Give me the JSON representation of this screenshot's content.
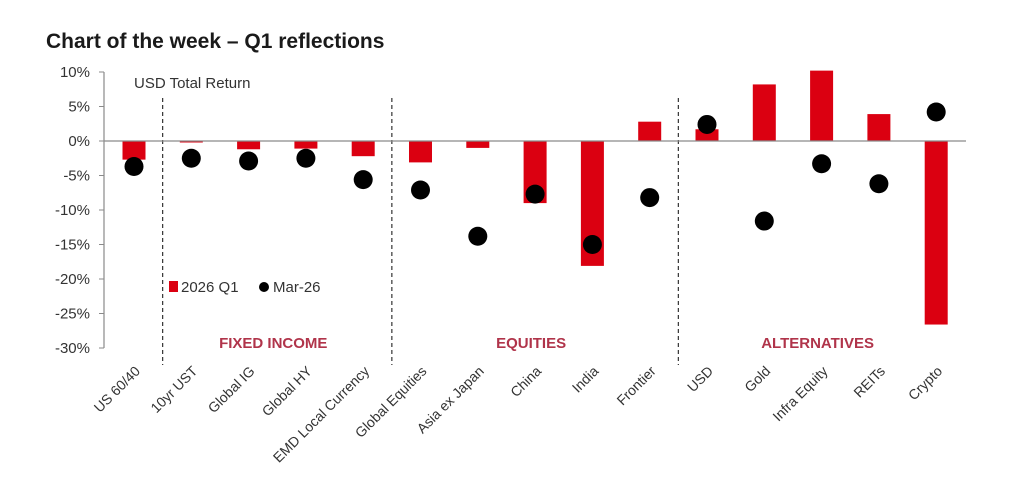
{
  "title": "Chart of the week – Q1 reflections",
  "annotation": "USD Total Return",
  "sections": [
    "FIXED INCOME",
    "EQUITIES",
    "ALTERNATIVES"
  ],
  "colors": {
    "bar": "#db0011",
    "dot": "#000000",
    "section": "#b0344a",
    "axis": "#8a8a8a"
  },
  "chart_data": {
    "type": "bar",
    "categories": [
      "US 60/40",
      "10yr UST",
      "Global IG",
      "Global HY",
      "EMD Local Currency",
      "Global Equities",
      "Asia ex Japan",
      "China",
      "India",
      "Frontier",
      "USD",
      "Gold",
      "Infra Equity",
      "REITs",
      "Crypto"
    ],
    "series": [
      {
        "name": "2026 Q1",
        "kind": "bar",
        "values": [
          -2.7,
          -0.2,
          -1.2,
          -1.1,
          -2.2,
          -3.1,
          -1.0,
          -9.0,
          -18.1,
          2.8,
          1.7,
          8.2,
          10.2,
          3.9,
          -26.6
        ]
      },
      {
        "name": "Mar-26",
        "kind": "scatter",
        "values": [
          -3.7,
          -2.5,
          -2.9,
          -2.5,
          -5.6,
          -7.1,
          -13.8,
          -7.7,
          -15.0,
          -8.2,
          2.4,
          -11.6,
          -3.3,
          -6.2,
          4.2
        ]
      }
    ],
    "yticks": [
      "10%",
      "5%",
      "0%",
      "-5%",
      "-10%",
      "-15%",
      "-20%",
      "-25%",
      "-30%"
    ],
    "ylim": [
      -30,
      10
    ],
    "legend_position": "middle-left"
  }
}
